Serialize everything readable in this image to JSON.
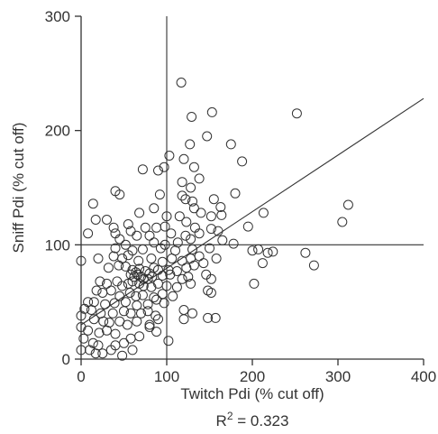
{
  "chart_data": {
    "type": "scatter",
    "xlabel": "Twitch Pdi (% cut off)",
    "ylabel": "Sniff Pdi (% cut off)",
    "xlim": [
      0,
      400
    ],
    "ylim": [
      0,
      300
    ],
    "xticks": [
      "0",
      "100",
      "200",
      "300",
      "400"
    ],
    "yticks": [
      "0",
      "100",
      "200",
      "300"
    ],
    "annotation": {
      "base": "R",
      "sup": "2",
      "rest": " = 0.323"
    },
    "reference_lines": {
      "x": 100,
      "y": 100
    },
    "regression_line": {
      "x": [
        0,
        400
      ],
      "y": [
        30,
        228
      ]
    },
    "points": [
      [
        117,
        242
      ],
      [
        153,
        216
      ],
      [
        129,
        212
      ],
      [
        252,
        215
      ],
      [
        147,
        195
      ],
      [
        127,
        188
      ],
      [
        175,
        188
      ],
      [
        103,
        178
      ],
      [
        120,
        175
      ],
      [
        188,
        173
      ],
      [
        72,
        166
      ],
      [
        97,
        168
      ],
      [
        90,
        165
      ],
      [
        132,
        168
      ],
      [
        118,
        155
      ],
      [
        138,
        158
      ],
      [
        40,
        147
      ],
      [
        45,
        144
      ],
      [
        128,
        150
      ],
      [
        180,
        145
      ],
      [
        14,
        136
      ],
      [
        118,
        143
      ],
      [
        92,
        144
      ],
      [
        122,
        140
      ],
      [
        155,
        140
      ],
      [
        163,
        133
      ],
      [
        132,
        132
      ],
      [
        130,
        138
      ],
      [
        312,
        135
      ],
      [
        85,
        132
      ],
      [
        140,
        128
      ],
      [
        68,
        128
      ],
      [
        100,
        125
      ],
      [
        152,
        125
      ],
      [
        213,
        128
      ],
      [
        38,
        115
      ],
      [
        55,
        118
      ],
      [
        17,
        122
      ],
      [
        30,
        122
      ],
      [
        115,
        125
      ],
      [
        123,
        120
      ],
      [
        164,
        126
      ],
      [
        305,
        120
      ],
      [
        88,
        115
      ],
      [
        98,
        116
      ],
      [
        75,
        115
      ],
      [
        133,
        115
      ],
      [
        195,
        116
      ],
      [
        152,
        114
      ],
      [
        8,
        110
      ],
      [
        40,
        110
      ],
      [
        58,
        112
      ],
      [
        65,
        108
      ],
      [
        80,
        108
      ],
      [
        105,
        110
      ],
      [
        138,
        110
      ],
      [
        122,
        108
      ],
      [
        160,
        112
      ],
      [
        45,
        105
      ],
      [
        52,
        100
      ],
      [
        85,
        102
      ],
      [
        113,
        102
      ],
      [
        98,
        100
      ],
      [
        128,
        105
      ],
      [
        178,
        101
      ],
      [
        165,
        104
      ],
      [
        40,
        97
      ],
      [
        60,
        95
      ],
      [
        72,
        96
      ],
      [
        93,
        97
      ],
      [
        110,
        95
      ],
      [
        130,
        96
      ],
      [
        150,
        97
      ],
      [
        200,
        95
      ],
      [
        207,
        96
      ],
      [
        218,
        93
      ],
      [
        212,
        84
      ],
      [
        224,
        94
      ],
      [
        262,
        93
      ],
      [
        272,
        82
      ],
      [
        0,
        86
      ],
      [
        20,
        88
      ],
      [
        38,
        90
      ],
      [
        48,
        88
      ],
      [
        55,
        91
      ],
      [
        67,
        86
      ],
      [
        82,
        88
      ],
      [
        95,
        85
      ],
      [
        106,
        88
      ],
      [
        118,
        86
      ],
      [
        128,
        88
      ],
      [
        138,
        90
      ],
      [
        143,
        84
      ],
      [
        158,
        88
      ],
      [
        32,
        80
      ],
      [
        44,
        82
      ],
      [
        52,
        81
      ],
      [
        60,
        78
      ],
      [
        64,
        76
      ],
      [
        68,
        79
      ],
      [
        75,
        77
      ],
      [
        80,
        75
      ],
      [
        85,
        80
      ],
      [
        90,
        78
      ],
      [
        102,
        78
      ],
      [
        112,
        77
      ],
      [
        123,
        80
      ],
      [
        132,
        82
      ],
      [
        58,
        74
      ],
      [
        62,
        72
      ],
      [
        66,
        74
      ],
      [
        70,
        72
      ],
      [
        73,
        70
      ],
      [
        78,
        70
      ],
      [
        83,
        72
      ],
      [
        95,
        73
      ],
      [
        104,
        74
      ],
      [
        118,
        70
      ],
      [
        125,
        72
      ],
      [
        146,
        74
      ],
      [
        152,
        70
      ],
      [
        202,
        66
      ],
      [
        22,
        68
      ],
      [
        30,
        66
      ],
      [
        42,
        68
      ],
      [
        48,
        64
      ],
      [
        55,
        66
      ],
      [
        60,
        68
      ],
      [
        68,
        66
      ],
      [
        73,
        64
      ],
      [
        82,
        63
      ],
      [
        90,
        66
      ],
      [
        100,
        64
      ],
      [
        112,
        63
      ],
      [
        128,
        66
      ],
      [
        148,
        60
      ],
      [
        18,
        60
      ],
      [
        25,
        58
      ],
      [
        35,
        60
      ],
      [
        45,
        55
      ],
      [
        57,
        58
      ],
      [
        64,
        55
      ],
      [
        72,
        56
      ],
      [
        85,
        54
      ],
      [
        95,
        57
      ],
      [
        107,
        55
      ],
      [
        152,
        58
      ],
      [
        8,
        50
      ],
      [
        15,
        50
      ],
      [
        28,
        48
      ],
      [
        39,
        49
      ],
      [
        52,
        50
      ],
      [
        65,
        47
      ],
      [
        78,
        48
      ],
      [
        88,
        52
      ],
      [
        97,
        49
      ],
      [
        4,
        44
      ],
      [
        12,
        43
      ],
      [
        23,
        40
      ],
      [
        37,
        40
      ],
      [
        50,
        42
      ],
      [
        58,
        40
      ],
      [
        70,
        40
      ],
      [
        78,
        42
      ],
      [
        87,
        38
      ],
      [
        120,
        43
      ],
      [
        130,
        40
      ],
      [
        0,
        38
      ],
      [
        15,
        35
      ],
      [
        26,
        33
      ],
      [
        33,
        32
      ],
      [
        45,
        33
      ],
      [
        54,
        30
      ],
      [
        65,
        33
      ],
      [
        80,
        30
      ],
      [
        90,
        35
      ],
      [
        120,
        35
      ],
      [
        148,
        36
      ],
      [
        157,
        36
      ],
      [
        0,
        28
      ],
      [
        8,
        25
      ],
      [
        21,
        23
      ],
      [
        30,
        25
      ],
      [
        40,
        22
      ],
      [
        58,
        18
      ],
      [
        68,
        20
      ],
      [
        80,
        28
      ],
      [
        88,
        24
      ],
      [
        3,
        18
      ],
      [
        14,
        14
      ],
      [
        20,
        12
      ],
      [
        40,
        12
      ],
      [
        50,
        14
      ],
      [
        0,
        8
      ],
      [
        10,
        8
      ],
      [
        17,
        5
      ],
      [
        25,
        5
      ],
      [
        35,
        8
      ],
      [
        48,
        3
      ],
      [
        60,
        8
      ],
      [
        102,
        16
      ]
    ]
  }
}
